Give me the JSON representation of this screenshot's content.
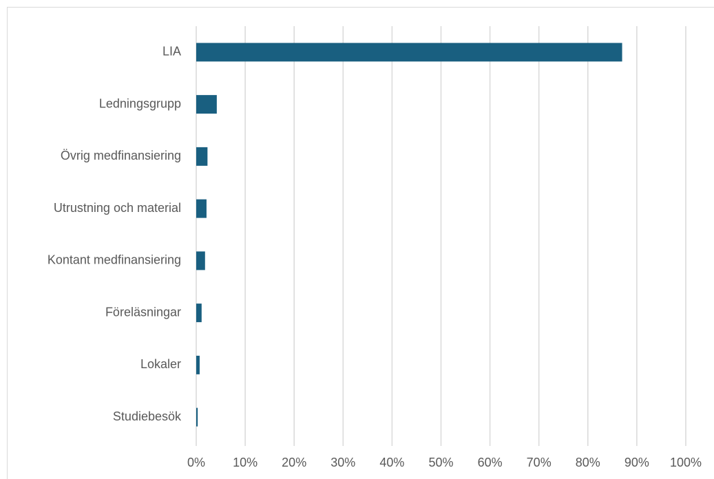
{
  "chart_data": {
    "type": "hbar",
    "categories": [
      "LIA",
      "Ledningsgrupp",
      "Övrig medfinansiering",
      "Utrustning och material",
      "Kontant medfinansiering",
      "Föreläsningar",
      "Lokaler",
      "Studiebesök"
    ],
    "values": [
      87,
      4.2,
      2.3,
      2.1,
      1.8,
      1.1,
      0.7,
      0.3
    ],
    "color": "#195f80",
    "xlim": [
      0,
      100
    ],
    "xticks": [
      {
        "value": 0,
        "label": "0%"
      },
      {
        "value": 10,
        "label": "10%"
      },
      {
        "value": 20,
        "label": "20%"
      },
      {
        "value": 30,
        "label": "30%"
      },
      {
        "value": 40,
        "label": "40%"
      },
      {
        "value": 50,
        "label": "50%"
      },
      {
        "value": 60,
        "label": "60%"
      },
      {
        "value": 70,
        "label": "70%"
      },
      {
        "value": 80,
        "label": "80%"
      },
      {
        "value": 90,
        "label": "90%"
      },
      {
        "value": 100,
        "label": "100%"
      }
    ],
    "grid": true
  }
}
